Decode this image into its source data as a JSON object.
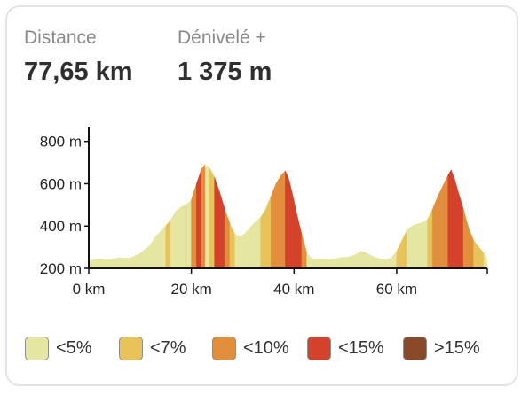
{
  "stats": {
    "distance": {
      "label": "Distance",
      "value": "77,65 km"
    },
    "gain": {
      "label": "Dénivelé +",
      "value": "1 375 m"
    }
  },
  "legend": [
    {
      "label": "<5%",
      "color": "#e6e6a3"
    },
    {
      "label": "<7%",
      "color": "#e8c35a"
    },
    {
      "label": "<10%",
      "color": "#e28f3d"
    },
    {
      "label": "<15%",
      "color": "#d4422c"
    },
    {
      "label": ">15%",
      "color": "#8a4a2a"
    }
  ],
  "chart_data": {
    "type": "area",
    "xlabel": "",
    "ylabel": "",
    "xlim": [
      0,
      77.65
    ],
    "ylim": [
      200,
      870
    ],
    "x_ticks": [
      0,
      20,
      40,
      60
    ],
    "x_tick_labels": [
      "0 km",
      "20 km",
      "40 km",
      "60 km"
    ],
    "y_ticks": [
      200,
      400,
      600,
      800
    ],
    "y_tick_labels": [
      "200 m",
      "400 m",
      "600 m",
      "800 m"
    ],
    "grid": false,
    "series": [
      {
        "x": [
          0,
          2,
          4,
          6,
          8,
          10,
          12,
          13,
          14,
          15,
          16,
          17,
          18,
          19,
          20,
          21,
          22,
          22.7,
          23.5,
          24.5,
          25.5,
          26.5,
          27.5,
          28.5,
          29.5,
          30.5,
          31.5,
          32.5,
          33.5,
          34.5,
          35.5,
          36.5,
          37.5,
          38.3,
          39,
          39.8,
          40.6,
          41.5,
          42.5,
          43.5,
          45,
          47,
          49,
          51,
          52,
          53,
          54,
          55,
          56,
          57,
          58,
          59,
          60,
          61,
          62,
          63,
          64,
          65,
          66,
          67,
          68,
          69,
          70,
          70.6,
          71.3,
          72,
          73,
          74,
          75,
          76,
          77,
          77.65
        ],
        "y": [
          235,
          245,
          240,
          250,
          248,
          270,
          310,
          350,
          375,
          400,
          430,
          470,
          490,
          500,
          525,
          600,
          670,
          690,
          675,
          630,
          560,
          480,
          410,
          360,
          350,
          365,
          395,
          420,
          440,
          480,
          540,
          600,
          640,
          660,
          620,
          540,
          450,
          360,
          270,
          245,
          245,
          240,
          250,
          255,
          265,
          280,
          275,
          260,
          250,
          245,
          240,
          250,
          280,
          330,
          380,
          400,
          410,
          415,
          430,
          480,
          540,
          590,
          640,
          665,
          620,
          560,
          480,
          390,
          330,
          300,
          270,
          240
        ],
        "grade": [
          1,
          1,
          1,
          1,
          1,
          1,
          1,
          1,
          1,
          2,
          1,
          1,
          1,
          1,
          3,
          4,
          3,
          1,
          2,
          4,
          4,
          3,
          2,
          1,
          1,
          1,
          1,
          1,
          2,
          2,
          3,
          3,
          3,
          4,
          4,
          4,
          4,
          3,
          1,
          1,
          1,
          1,
          1,
          1,
          1,
          1,
          1,
          1,
          1,
          1,
          1,
          1,
          2,
          2,
          1,
          1,
          1,
          1,
          2,
          3,
          3,
          3,
          4,
          4,
          4,
          4,
          3,
          3,
          2,
          2,
          1
        ]
      }
    ]
  }
}
